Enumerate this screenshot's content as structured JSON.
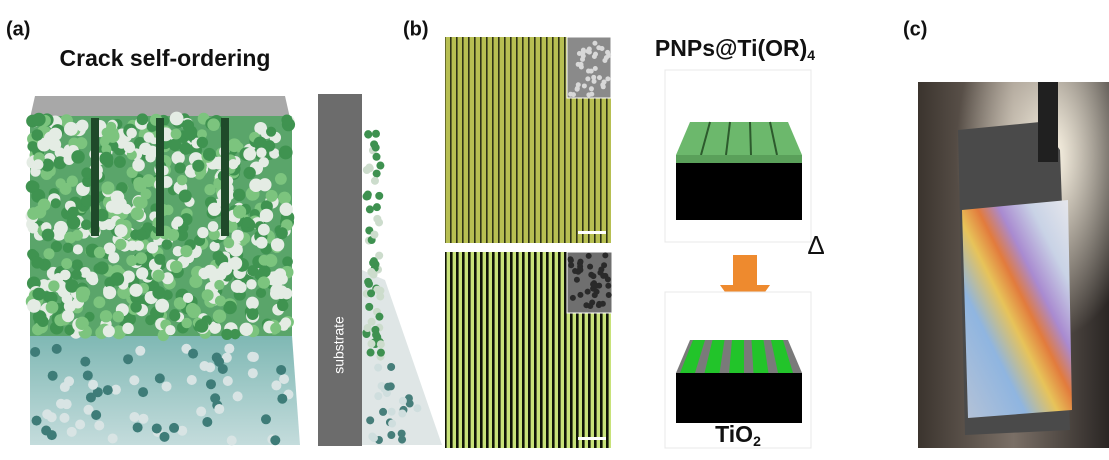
{
  "panels": {
    "a": {
      "label": "(a)",
      "title": "Crack self-ordering",
      "substrate": "substrate"
    },
    "b": {
      "label": "(b)",
      "precursor": {
        "text": "PNPs@Ti(OR)",
        "sub": "4"
      },
      "heat": "Δ",
      "product": {
        "text": "TiO",
        "sub": "2"
      }
    },
    "c": {
      "label": "(c)"
    }
  }
}
